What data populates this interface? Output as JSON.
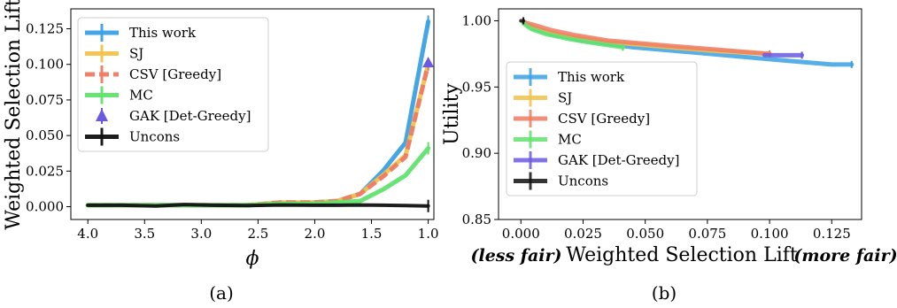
{
  "chart_data": [
    {
      "type": "line",
      "caption": "(a)",
      "xlabel": "ϕ",
      "ylabel": "Weighted Selection Lift",
      "x_reversed": true,
      "xlim": [
        4.15,
        0.95
      ],
      "ylim": [
        -0.009,
        0.139
      ],
      "xticks": [
        4.0,
        3.5,
        3.0,
        2.5,
        2.0,
        1.5,
        1.0
      ],
      "xtick_labels": [
        "4.0",
        "3.5",
        "3.0",
        "2.5",
        "2.0",
        "1.5",
        "1.0"
      ],
      "yticks": [
        0.0,
        0.025,
        0.05,
        0.075,
        0.1,
        0.125
      ],
      "ytick_labels": [
        "0.000",
        "0.025",
        "0.050",
        "0.075",
        "0.100",
        "0.125"
      ],
      "legend_position": "top-left",
      "legend": [
        "This work",
        "SJ",
        "CSV [Greedy]",
        "MC",
        "GAK [Det-Greedy]",
        "Uncons"
      ],
      "series": [
        {
          "name": "This work",
          "color": "#3aa1e3",
          "style": "solid",
          "width": 5,
          "x": [
            4.0,
            3.7,
            3.4,
            3.15,
            2.9,
            2.6,
            2.3,
            2.0,
            1.8,
            1.6,
            1.4,
            1.2,
            1.0
          ],
          "y": [
            0.001,
            0.001,
            0.001,
            0.001,
            0.001,
            0.001,
            0.002,
            0.003,
            0.004,
            0.009,
            0.025,
            0.045,
            0.13
          ]
        },
        {
          "name": "SJ",
          "color": "#f1c24b",
          "style": "solid",
          "width": 5,
          "x": [
            4.0,
            3.7,
            3.4,
            3.15,
            2.9,
            2.6,
            2.3,
            2.0,
            1.8,
            1.6,
            1.4,
            1.2,
            1.0
          ],
          "y": [
            0.001,
            0.001,
            0.001,
            0.001,
            0.001,
            0.001,
            0.003,
            0.003,
            0.004,
            0.009,
            0.022,
            0.036,
            0.1
          ]
        },
        {
          "name": "CSV [Greedy]",
          "color": "#ee7b63",
          "style": "dashed",
          "width": 5,
          "x": [
            4.0,
            3.7,
            3.4,
            3.15,
            2.9,
            2.6,
            2.3,
            2.0,
            1.8,
            1.6,
            1.4,
            1.2,
            1.0
          ],
          "y": [
            0.001,
            0.001,
            0.001,
            0.001,
            0.001,
            0.001,
            0.003,
            0.003,
            0.004,
            0.009,
            0.021,
            0.035,
            0.1
          ]
        },
        {
          "name": "MC",
          "color": "#5fe36c",
          "style": "solid",
          "width": 5,
          "x": [
            4.0,
            3.7,
            3.4,
            3.15,
            2.9,
            2.6,
            2.3,
            2.0,
            1.8,
            1.6,
            1.4,
            1.2,
            1.0
          ],
          "y": [
            0.001,
            0.001,
            0.001,
            0.001,
            0.001,
            0.001,
            0.002,
            0.002,
            0.003,
            0.004,
            0.012,
            0.022,
            0.041
          ]
        },
        {
          "name": "GAK [Det-Greedy]",
          "color": "#6a5ae0",
          "style": "marker",
          "x": [
            1.0
          ],
          "y": [
            0.101
          ]
        },
        {
          "name": "Uncons",
          "color": "#111111",
          "style": "solid",
          "width": 4,
          "x": [
            4.0,
            3.7,
            3.4,
            3.15,
            2.9,
            2.6,
            2.3,
            2.0,
            1.8,
            1.6,
            1.4,
            1.2,
            1.0
          ],
          "y": [
            0.001,
            0.001,
            0.0005,
            0.0015,
            0.001,
            0.0008,
            0.0012,
            0.001,
            0.001,
            0.0012,
            0.001,
            0.0008,
            0.0005
          ]
        }
      ]
    },
    {
      "type": "line",
      "caption": "(b)",
      "xlabel": "Weighted Selection Lift",
      "xlabel_left_note": "(less fair)",
      "xlabel_right_note": "(more fair)",
      "ylabel": "Utility",
      "xlim": [
        -0.009,
        0.137
      ],
      "ylim": [
        0.85,
        1.009
      ],
      "xticks": [
        0.0,
        0.025,
        0.05,
        0.075,
        0.1,
        0.125
      ],
      "xtick_labels": [
        "0.000",
        "0.025",
        "0.050",
        "0.075",
        "0.100",
        "0.125"
      ],
      "yticks": [
        0.85,
        0.9,
        0.95,
        1.0
      ],
      "ytick_labels": [
        "0.85",
        "0.90",
        "0.95",
        "1.00"
      ],
      "legend_position": "lower-left",
      "legend": [
        "This work",
        "SJ",
        "CSV [Greedy]",
        "MC",
        "GAK [Det-Greedy]",
        "Uncons"
      ],
      "series": [
        {
          "name": "This work",
          "color": "#3aa1e3",
          "width": 5,
          "x": [
            0.001,
            0.005,
            0.012,
            0.025,
            0.045,
            0.07,
            0.1,
            0.125,
            0.133
          ],
          "y": [
            0.999,
            0.994,
            0.99,
            0.985,
            0.98,
            0.976,
            0.971,
            0.967,
            0.967
          ]
        },
        {
          "name": "SJ",
          "color": "#f1c24b",
          "width": 5,
          "x": [
            0.001,
            0.004,
            0.01,
            0.02,
            0.035,
            0.06,
            0.08,
            0.1
          ],
          "y": [
            0.999,
            0.996,
            0.992,
            0.988,
            0.984,
            0.98,
            0.977,
            0.975
          ]
        },
        {
          "name": "CSV [Greedy]",
          "color": "#ee7b63",
          "width": 5,
          "x": [
            0.001,
            0.005,
            0.012,
            0.022,
            0.035,
            0.06,
            0.08,
            0.1
          ],
          "y": [
            0.999,
            0.997,
            0.993,
            0.989,
            0.985,
            0.981,
            0.978,
            0.975
          ]
        },
        {
          "name": "MC",
          "color": "#5fe36c",
          "width": 5,
          "x": [
            0.001,
            0.004,
            0.01,
            0.02,
            0.03,
            0.041
          ],
          "y": [
            0.998,
            0.994,
            0.99,
            0.986,
            0.983,
            0.98
          ]
        },
        {
          "name": "GAK [Det-Greedy]",
          "color": "#6a5ae0",
          "width": 5,
          "x": [
            0.098,
            0.103,
            0.108,
            0.113
          ],
          "y": [
            0.974,
            0.974,
            0.974,
            0.974
          ]
        },
        {
          "name": "Uncons",
          "color": "#111111",
          "width": 4,
          "x": [
            0.0,
            0.001
          ],
          "y": [
            1.0,
            1.0
          ]
        }
      ]
    }
  ]
}
